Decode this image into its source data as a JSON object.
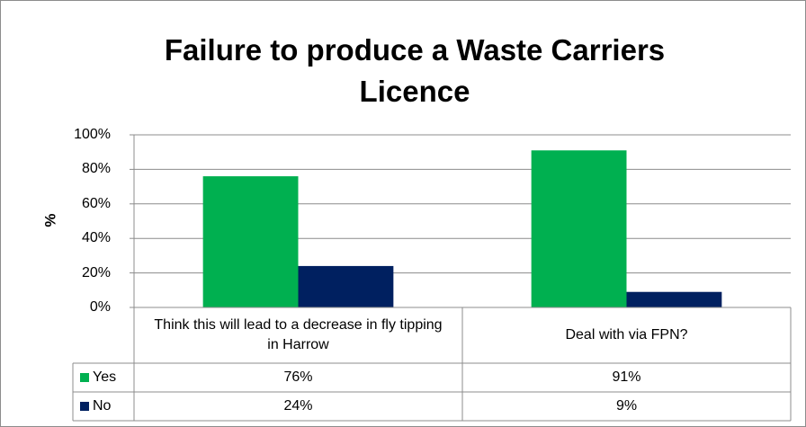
{
  "chart_data": {
    "type": "bar",
    "title": "Failure to produce a Waste Carriers Licence",
    "y_label": "%",
    "categories": [
      "Think this will lead to a decrease in fly tipping in Harrow",
      "Deal with via FPN?"
    ],
    "series": [
      {
        "name": "Yes",
        "color": "#00b050",
        "values": [
          76,
          91
        ],
        "value_labels": [
          "76%",
          "91%"
        ]
      },
      {
        "name": "No",
        "color": "#002060",
        "values": [
          24,
          9
        ],
        "value_labels": [
          "24%",
          "9%"
        ]
      }
    ],
    "ylim": [
      0,
      100
    ],
    "yticks": [
      {
        "value": 0,
        "label": "0%"
      },
      {
        "value": 20,
        "label": "20%"
      },
      {
        "value": 40,
        "label": "40%"
      },
      {
        "value": 60,
        "label": "60%"
      },
      {
        "value": 80,
        "label": "80%"
      },
      {
        "value": 100,
        "label": "100%"
      }
    ],
    "grid": true,
    "data_table": true
  }
}
